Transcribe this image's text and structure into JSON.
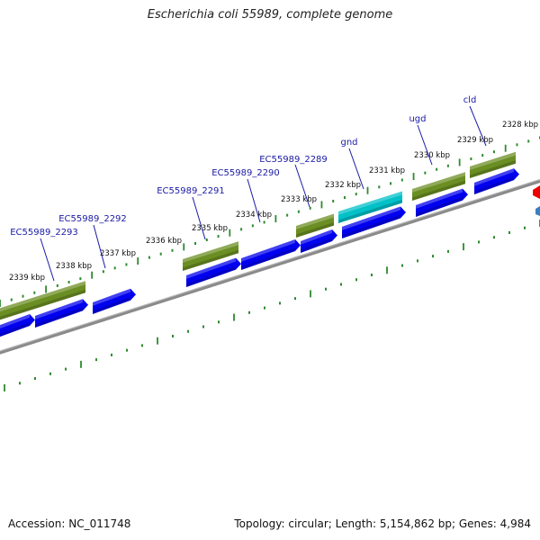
{
  "title": "Escherichia coli 55989, complete genome",
  "footer": {
    "accession": "Accession: NC_011748",
    "summary": "Topology: circular; Length: 5,154,862 bp; Genes: 4,984"
  },
  "colors": {
    "backbone": "#808080",
    "tick": "#2e8b2e",
    "cds": "#0000ee",
    "gene": "#6b8e23",
    "highlight": "#00c0c8",
    "label": "#1a1aa6",
    "marker_red": "#ee0000",
    "marker_blue": "#3a7fbf"
  },
  "scale": {
    "unit": "kbp",
    "ticks": [
      {
        "label": "2328 kbp"
      },
      {
        "label": "2329 kbp"
      },
      {
        "label": "2330 kbp"
      },
      {
        "label": "2331 kbp"
      },
      {
        "label": "2332 kbp"
      },
      {
        "label": "2333 kbp"
      },
      {
        "label": "2334 kbp"
      },
      {
        "label": "2335 kbp"
      },
      {
        "label": "2336 kbp"
      },
      {
        "label": "2337 kbp"
      },
      {
        "label": "2338 kbp"
      },
      {
        "label": "2339 kbp"
      }
    ]
  },
  "gene_labels": [
    {
      "name": "cld"
    },
    {
      "name": "ugd"
    },
    {
      "name": "gnd"
    },
    {
      "name": "EC55989_2289"
    },
    {
      "name": "EC55989_2290"
    },
    {
      "name": "EC55989_2291"
    },
    {
      "name": "EC55989_2292"
    },
    {
      "name": "EC55989_2293"
    }
  ]
}
